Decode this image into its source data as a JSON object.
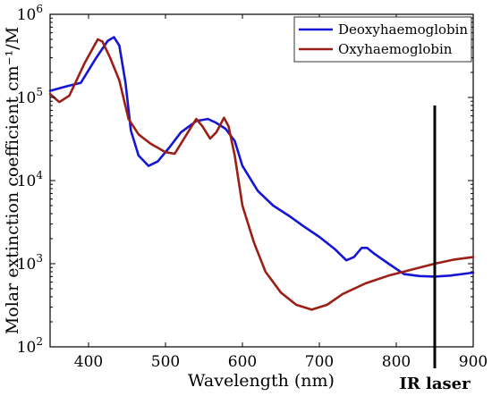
{
  "chart_data": {
    "type": "line",
    "xlabel": "Wavelength (nm)",
    "ylabel": "Molar extinction coefficient cm⁻¹/M",
    "xlim": [
      350,
      900
    ],
    "ylim": [
      100,
      1000000
    ],
    "yscale": "log",
    "x_ticks": [
      "400",
      "500",
      "600",
      "700",
      "800",
      "900"
    ],
    "y_ticks": [
      {
        "base": "10",
        "exp": "2",
        "value": 100
      },
      {
        "base": "10",
        "exp": "3",
        "value": 1000
      },
      {
        "base": "10",
        "exp": "4",
        "value": 10000
      },
      {
        "base": "10",
        "exp": "5",
        "value": 100000
      },
      {
        "base": "10",
        "exp": "6",
        "value": 1000000
      }
    ],
    "grid": false,
    "legend_position": "top-right",
    "series": [
      {
        "name": "Deoxyhaemoglobin",
        "color": "#1515d6",
        "points": [
          [
            350,
            120000
          ],
          [
            370,
            135000
          ],
          [
            390,
            150000
          ],
          [
            410,
            300000
          ],
          [
            425,
            480000
          ],
          [
            433,
            530000
          ],
          [
            440,
            420000
          ],
          [
            448,
            150000
          ],
          [
            455,
            40000
          ],
          [
            465,
            20000
          ],
          [
            478,
            15000
          ],
          [
            490,
            17000
          ],
          [
            505,
            25000
          ],
          [
            520,
            38000
          ],
          [
            540,
            52000
          ],
          [
            555,
            55000
          ],
          [
            565,
            50000
          ],
          [
            578,
            42000
          ],
          [
            590,
            30000
          ],
          [
            600,
            15000
          ],
          [
            620,
            7500
          ],
          [
            640,
            5000
          ],
          [
            660,
            3800
          ],
          [
            680,
            2800
          ],
          [
            700,
            2100
          ],
          [
            720,
            1500
          ],
          [
            735,
            1100
          ],
          [
            745,
            1200
          ],
          [
            755,
            1550
          ],
          [
            762,
            1550
          ],
          [
            770,
            1350
          ],
          [
            790,
            1000
          ],
          [
            810,
            750
          ],
          [
            830,
            710
          ],
          [
            850,
            700
          ],
          [
            870,
            720
          ],
          [
            900,
            780
          ]
        ]
      },
      {
        "name": "Oxyhaemoglobin",
        "color": "#9c1f16",
        "points": [
          [
            350,
            110000
          ],
          [
            362,
            88000
          ],
          [
            375,
            105000
          ],
          [
            395,
            260000
          ],
          [
            412,
            500000
          ],
          [
            418,
            470000
          ],
          [
            428,
            300000
          ],
          [
            440,
            160000
          ],
          [
            452,
            55000
          ],
          [
            465,
            36000
          ],
          [
            480,
            28000
          ],
          [
            500,
            22000
          ],
          [
            512,
            21000
          ],
          [
            525,
            33000
          ],
          [
            540,
            55000
          ],
          [
            548,
            45000
          ],
          [
            558,
            32000
          ],
          [
            566,
            38000
          ],
          [
            576,
            57000
          ],
          [
            582,
            45000
          ],
          [
            590,
            20000
          ],
          [
            600,
            5000
          ],
          [
            615,
            1800
          ],
          [
            630,
            800
          ],
          [
            650,
            450
          ],
          [
            670,
            320
          ],
          [
            690,
            280
          ],
          [
            710,
            320
          ],
          [
            730,
            430
          ],
          [
            760,
            580
          ],
          [
            790,
            720
          ],
          [
            820,
            850
          ],
          [
            850,
            1000
          ],
          [
            875,
            1120
          ],
          [
            900,
            1200
          ]
        ]
      }
    ],
    "annotations": [
      {
        "text": "IR laser",
        "x": 850
      }
    ]
  }
}
